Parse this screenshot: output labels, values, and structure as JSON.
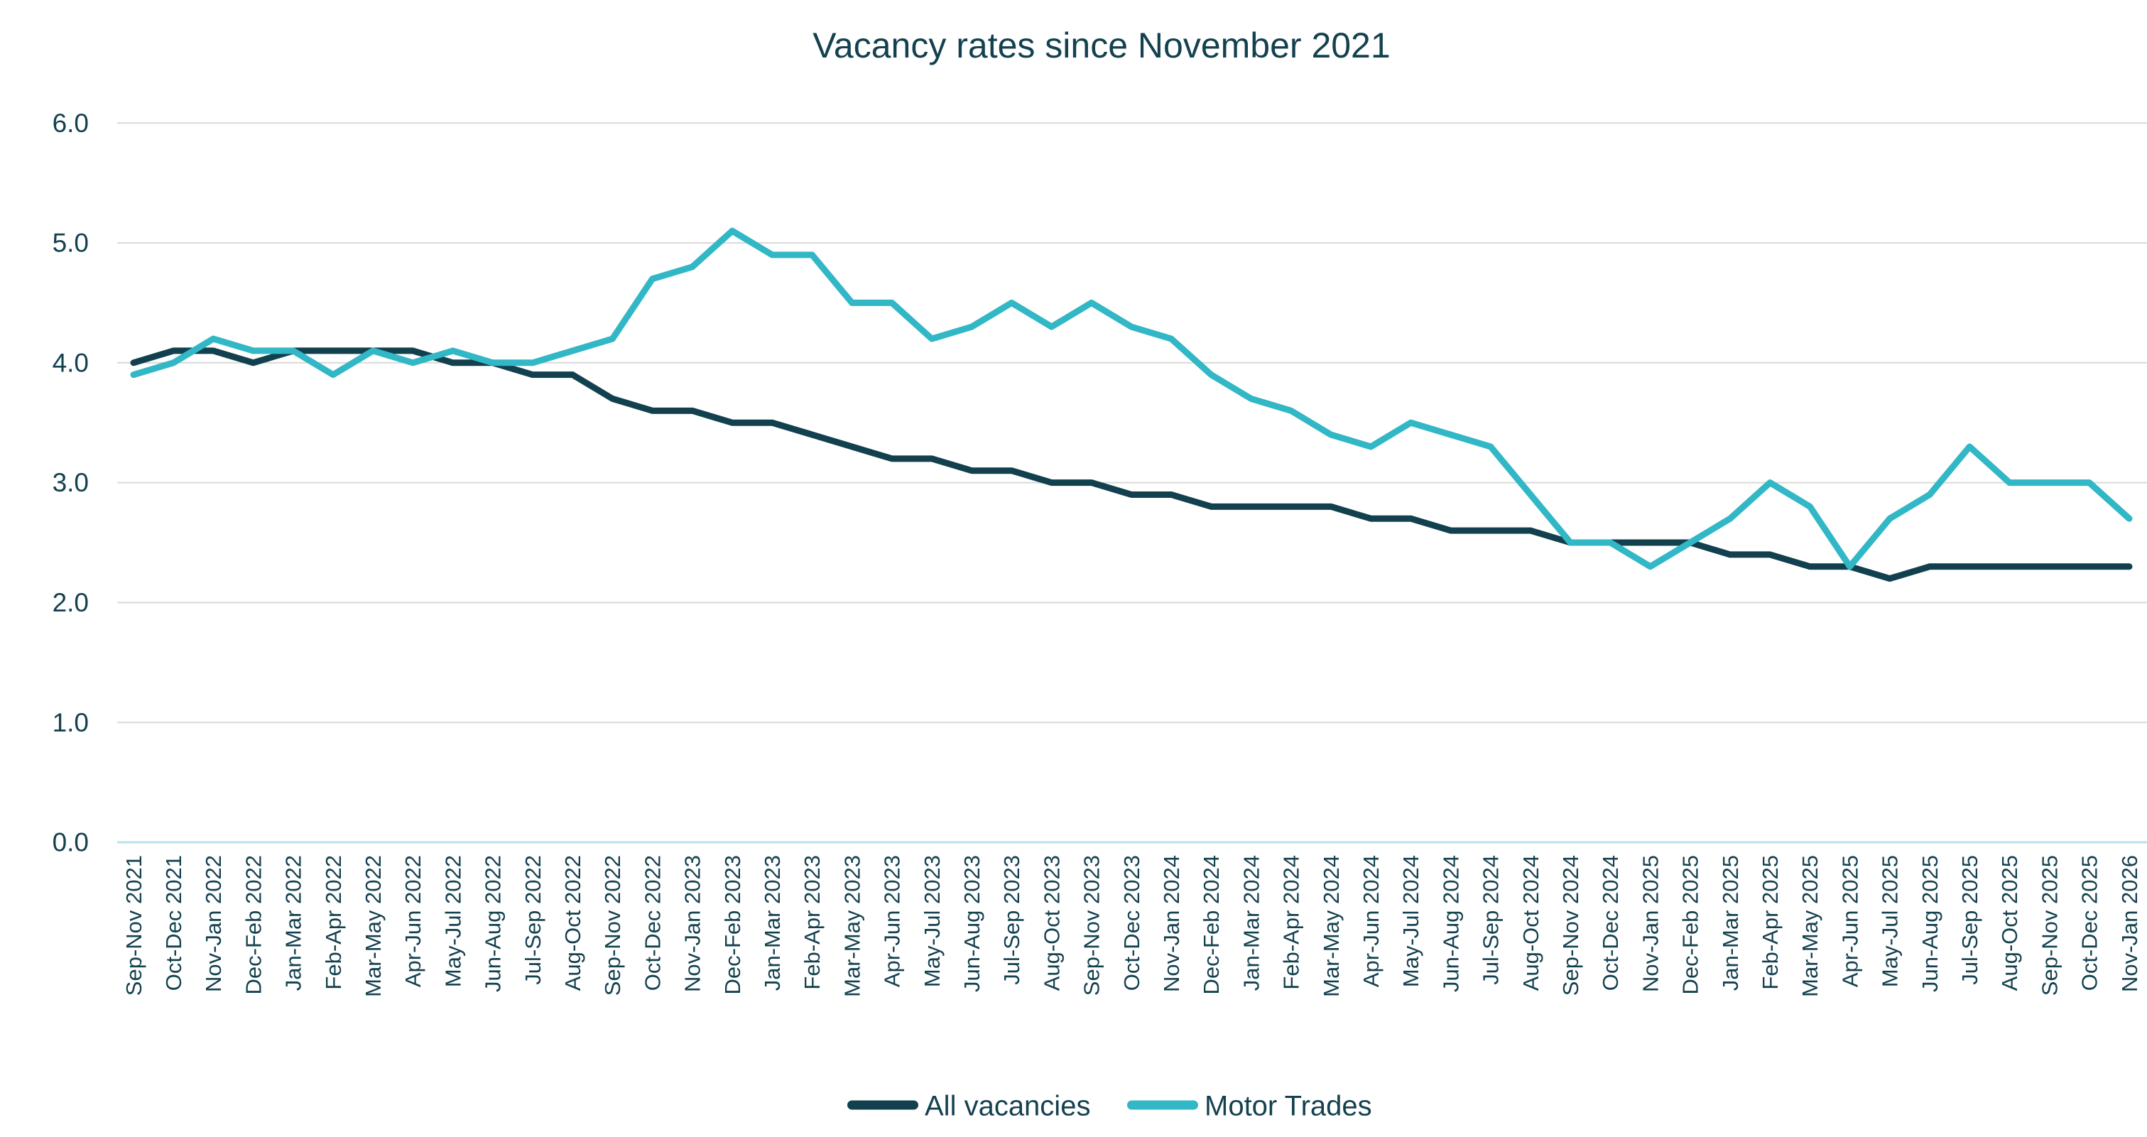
{
  "chart_data": {
    "type": "line",
    "title": "Vacancy rates since November 2021",
    "xlabel": "",
    "ylabel": "",
    "ylim": [
      0,
      6
    ],
    "grid": "horizontal",
    "legend_position": "bottom",
    "background_color": "#ffffff",
    "gridline_color": "#d9d9d9",
    "zero_axis_color": "#b9e2ee",
    "text_color": "#14414f",
    "yticks": [
      {
        "value": 0,
        "label": "0.0"
      },
      {
        "value": 1,
        "label": "1.0"
      },
      {
        "value": 2,
        "label": "2.0"
      },
      {
        "value": 3,
        "label": "3.0"
      },
      {
        "value": 4,
        "label": "4.0"
      },
      {
        "value": 5,
        "label": "5.0"
      },
      {
        "value": 6,
        "label": "6.0"
      }
    ],
    "categories": [
      "Sep-Nov 2021",
      "Oct-Dec 2021",
      "Nov-Jan 2022",
      "Dec-Feb 2022",
      "Jan-Mar 2022",
      "Feb-Apr 2022",
      "Mar-May 2022",
      "Apr-Jun 2022",
      "May-Jul 2022",
      "Jun-Aug 2022",
      "Jul-Sep 2022",
      "Aug-Oct 2022",
      "Sep-Nov 2022",
      "Oct-Dec 2022",
      "Nov-Jan 2023",
      "Dec-Feb 2023",
      "Jan-Mar 2023",
      "Feb-Apr 2023",
      "Mar-May 2023",
      "Apr-Jun 2023",
      "May-Jul 2023",
      "Jun-Aug 2023",
      "Jul-Sep 2023",
      "Aug-Oct 2023",
      "Sep-Nov 2023",
      "Oct-Dec 2023",
      "Nov-Jan 2024",
      "Dec-Feb 2024",
      "Jan-Mar 2024",
      "Feb-Apr 2024",
      "Mar-May 2024",
      "Apr-Jun 2024",
      "May-Jul 2024",
      "Jun-Aug 2024",
      "Jul-Sep 2024",
      "Aug-Oct 2024",
      "Sep-Nov 2024",
      "Oct-Dec 2024",
      "Nov-Jan 2025",
      "Dec-Feb 2025",
      "Jan-Mar 2025",
      "Feb-Apr 2025",
      "Mar-May 2025",
      "Apr-Jun 2025",
      "May-Jul 2025",
      "Jun-Aug 2025",
      "Jul-Sep 2025",
      "Aug-Oct 2025",
      "Sep-Nov 2025",
      "Oct-Dec 2025",
      "Nov-Jan 2026"
    ],
    "series": [
      {
        "name": "All vacancies",
        "color": "#12404e",
        "values": [
          4.0,
          4.1,
          4.1,
          4.0,
          4.1,
          4.1,
          4.1,
          4.1,
          4.0,
          4.0,
          3.9,
          3.9,
          3.7,
          3.6,
          3.6,
          3.5,
          3.5,
          3.4,
          3.3,
          3.2,
          3.2,
          3.1,
          3.1,
          3.0,
          3.0,
          2.9,
          2.9,
          2.8,
          2.8,
          2.8,
          2.8,
          2.7,
          2.7,
          2.6,
          2.6,
          2.6,
          2.5,
          2.5,
          2.5,
          2.5,
          2.4,
          2.4,
          2.3,
          2.3,
          2.2,
          2.3,
          2.3,
          2.3,
          2.3,
          2.3,
          2.3
        ]
      },
      {
        "name": "Motor Trades",
        "color": "#31b7c5",
        "values": [
          3.9,
          4.0,
          4.2,
          4.1,
          4.1,
          3.9,
          4.1,
          4.0,
          4.1,
          4.0,
          4.0,
          4.1,
          4.2,
          4.7,
          4.8,
          5.1,
          4.9,
          4.9,
          4.5,
          4.5,
          4.2,
          4.3,
          4.5,
          4.3,
          4.5,
          4.3,
          4.2,
          3.9,
          3.7,
          3.6,
          3.4,
          3.3,
          3.5,
          3.4,
          3.3,
          2.9,
          2.5,
          2.5,
          2.3,
          2.5,
          2.7,
          3.0,
          2.8,
          2.3,
          2.7,
          2.9,
          3.3,
          3.0,
          3.0,
          3.0,
          2.7
        ]
      }
    ]
  }
}
